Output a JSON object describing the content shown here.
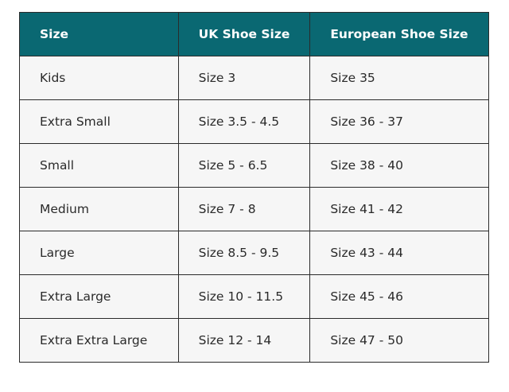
{
  "table": {
    "header_color": "#0a6872",
    "headers": [
      "Size",
      "UK Shoe Size",
      "European Shoe Size"
    ],
    "rows": [
      [
        "Kids",
        "Size 3",
        "Size 35"
      ],
      [
        "Extra Small",
        "Size 3.5 - 4.5",
        "Size 36 - 37"
      ],
      [
        "Small",
        "Size 5 - 6.5",
        "Size 38 - 40"
      ],
      [
        "Medium",
        "Size 7 - 8",
        "Size 41 - 42"
      ],
      [
        "Large",
        "Size 8.5 - 9.5",
        "Size 43 - 44"
      ],
      [
        "Extra Large",
        "Size 10 - 11.5",
        "Size 45 - 46"
      ],
      [
        "Extra Extra Large",
        "Size 12 - 14",
        "Size 47 - 50"
      ]
    ]
  }
}
